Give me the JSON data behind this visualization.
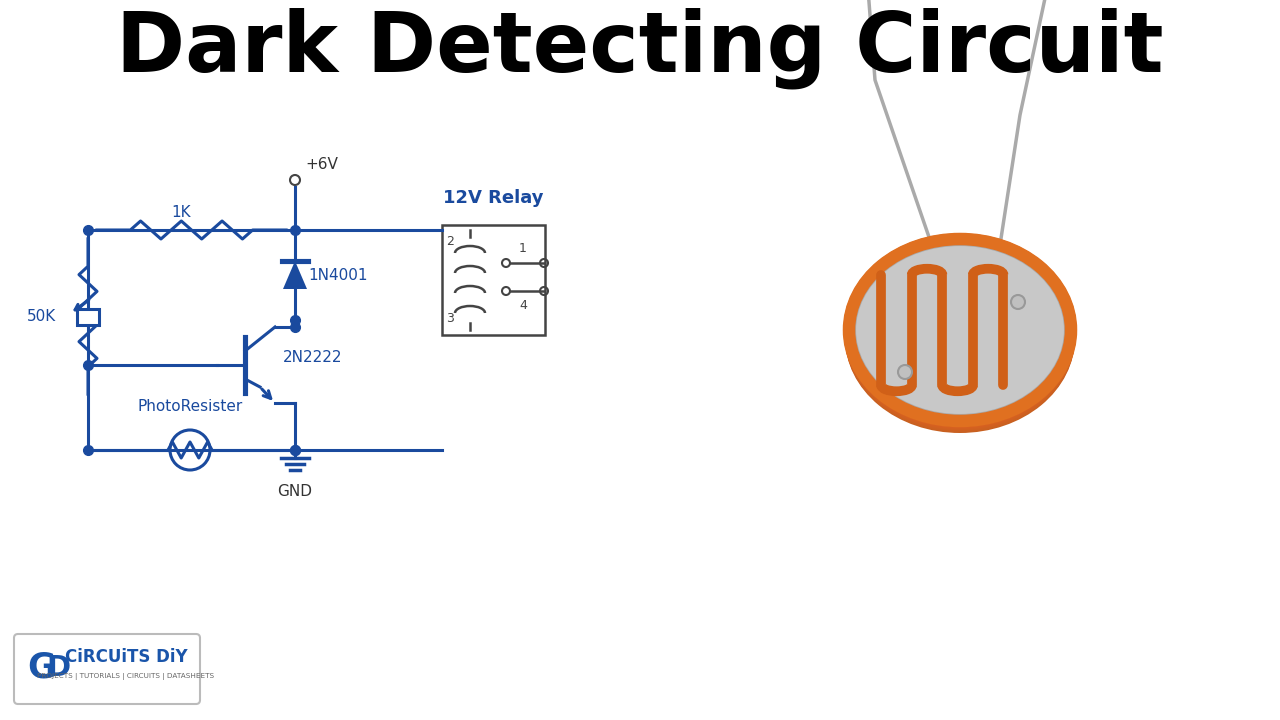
{
  "title": "Dark Detecting Circuit",
  "title_fontsize": 60,
  "title_fontweight": "bold",
  "title_color": "#000000",
  "circuit_color": "#1a4a9e",
  "label_color": "#1a4a9e",
  "background_color": "#ffffff",
  "ldr_color_orange": "#E07020",
  "ldr_color_face": "#C8C8C8",
  "ldr_lead_color": "#AAAAAA",
  "relay_border": "#444444",
  "logo_border": "#BBBBBB",
  "logo_text_color": "#1A55AA",
  "logo_sub_color": "#666666",
  "vcc_label_color": "#333333",
  "gnd_label_color": "#333333",
  "component_labels": {
    "resistor": "1K",
    "pot": "50K",
    "transistor": "2N2222",
    "diode": "1N4001",
    "relay": "12V Relay",
    "photoresistor": "PhotoResister",
    "vcc": "+6V",
    "gnd": "GND"
  }
}
